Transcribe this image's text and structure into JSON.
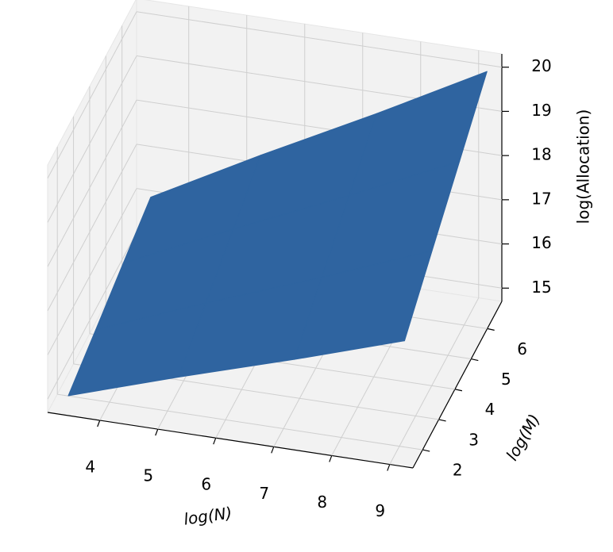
{
  "chart_data": {
    "type": "surface",
    "x": [
      3.4,
      5.3,
      7.3,
      9.2
    ],
    "y": [
      1.6,
      3.3,
      5.0,
      6.7
    ],
    "z": [
      [
        15.0,
        15.8,
        16.6,
        17.4
      ],
      [
        15.33,
        16.31,
        17.29,
        18.27
      ],
      [
        15.67,
        16.82,
        17.98,
        19.13
      ],
      [
        16.0,
        17.33,
        18.67,
        20.0
      ]
    ],
    "color": "#2f64a0",
    "xlabel": "log(N)",
    "ylabel": "log(M)",
    "zlabel": "log(Allocation)",
    "xlim": [
      3.1,
      9.4
    ],
    "ylim": [
      1.4,
      6.9
    ],
    "zlim": [
      14.7,
      20.3
    ],
    "xticks": [
      4,
      5,
      6,
      7,
      8,
      9
    ],
    "yticks": [
      2,
      3,
      4,
      5,
      6
    ],
    "zticks": [
      15,
      16,
      17,
      18,
      19,
      20
    ],
    "grid": true
  }
}
